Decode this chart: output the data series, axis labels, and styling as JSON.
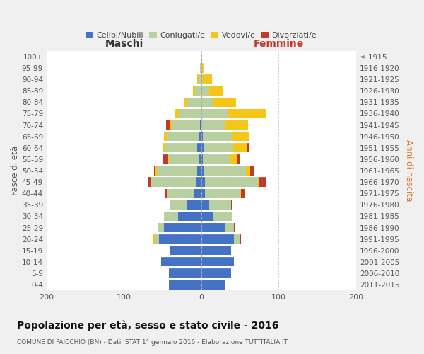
{
  "age_groups": [
    "0-4",
    "5-9",
    "10-14",
    "15-19",
    "20-24",
    "25-29",
    "30-34",
    "35-39",
    "40-44",
    "45-49",
    "50-54",
    "55-59",
    "60-64",
    "65-69",
    "70-74",
    "75-79",
    "80-84",
    "85-89",
    "90-94",
    "95-99",
    "100+"
  ],
  "birth_years": [
    "2011-2015",
    "2006-2010",
    "2001-2005",
    "1996-2000",
    "1991-1995",
    "1986-1990",
    "1981-1985",
    "1976-1980",
    "1971-1975",
    "1966-1970",
    "1961-1965",
    "1956-1960",
    "1951-1955",
    "1946-1950",
    "1941-1945",
    "1936-1940",
    "1931-1935",
    "1926-1930",
    "1921-1925",
    "1916-1920",
    "≤ 1915"
  ],
  "male_celibi": [
    42,
    42,
    52,
    40,
    55,
    48,
    30,
    18,
    10,
    7,
    5,
    4,
    5,
    3,
    2,
    1,
    0,
    0,
    0,
    0,
    0
  ],
  "male_coniugati": [
    0,
    0,
    0,
    0,
    5,
    8,
    18,
    22,
    35,
    58,
    52,
    38,
    42,
    42,
    35,
    28,
    18,
    8,
    3,
    2,
    0
  ],
  "male_vedovi": [
    0,
    0,
    0,
    0,
    3,
    0,
    0,
    0,
    0,
    0,
    2,
    1,
    2,
    3,
    4,
    5,
    5,
    3,
    2,
    0,
    0
  ],
  "male_divorziati": [
    0,
    0,
    0,
    0,
    0,
    0,
    0,
    1,
    2,
    3,
    2,
    6,
    1,
    0,
    5,
    0,
    0,
    0,
    0,
    0,
    0
  ],
  "female_nubili": [
    30,
    38,
    42,
    38,
    42,
    30,
    15,
    10,
    5,
    5,
    3,
    2,
    3,
    2,
    0,
    0,
    0,
    0,
    0,
    0,
    0
  ],
  "female_coniugate": [
    0,
    0,
    0,
    0,
    8,
    12,
    25,
    28,
    45,
    68,
    55,
    35,
    38,
    38,
    30,
    35,
    15,
    10,
    2,
    1,
    0
  ],
  "female_vedove": [
    0,
    0,
    0,
    0,
    0,
    0,
    0,
    0,
    1,
    2,
    5,
    10,
    18,
    22,
    30,
    48,
    30,
    18,
    12,
    2,
    0
  ],
  "female_divorziate": [
    0,
    0,
    0,
    0,
    1,
    2,
    0,
    2,
    5,
    8,
    5,
    2,
    2,
    0,
    0,
    0,
    0,
    0,
    0,
    0,
    0
  ],
  "colors_celibi": "#4472c4",
  "colors_coniugati": "#b8cfa0",
  "colors_vedovi": "#f5c518",
  "colors_divorziati": "#c0392b",
  "xlim": 200,
  "title": "Popolazione per età, sesso e stato civile - 2016",
  "subtitle": "COMUNE DI FAICCHIO (BN) - Dati ISTAT 1° gennaio 2016 - Elaborazione TUTTITALIA.IT",
  "ylabel_left": "Fasce di età",
  "ylabel_right": "Anni di nascita",
  "xlabel_left": "Maschi",
  "xlabel_right": "Femmine",
  "bg_color": "#f0f0f0",
  "plot_bg_color": "#ffffff"
}
